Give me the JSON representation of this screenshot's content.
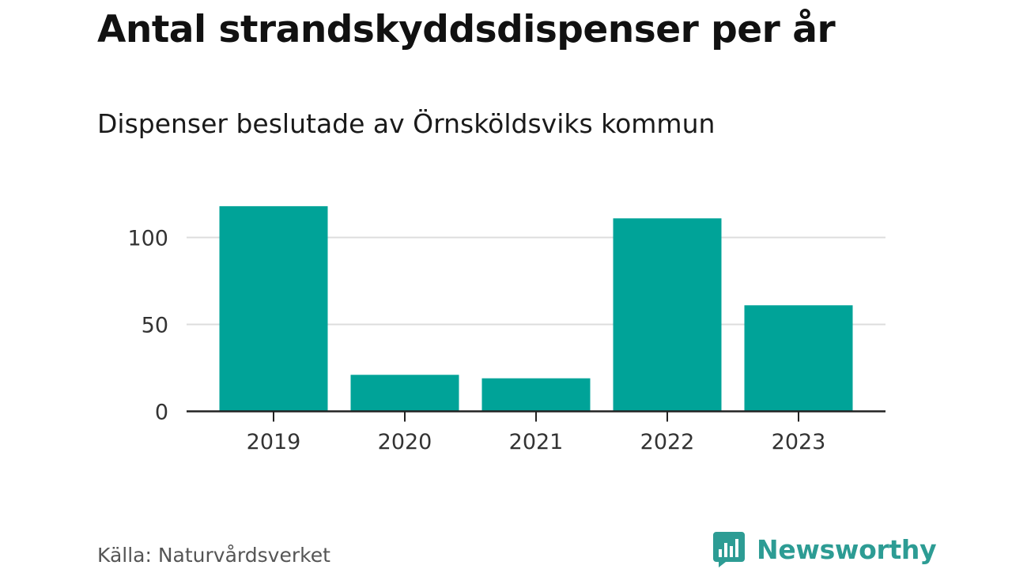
{
  "colors": {
    "bar": "#00a398",
    "grid": "#dddddd",
    "axis": "#222222",
    "brand": "#2d9c94"
  },
  "source_text": "Källa: Naturvårdsverket",
  "brand": {
    "name": "Newsworthy",
    "icon": "newsworthy-logo-icon"
  },
  "chart_data": {
    "type": "bar",
    "title": "Antal strandskyddsdispenser per år",
    "subtitle": "Dispenser beslutade av Örnsköldsviks kommun",
    "categories": [
      "2019",
      "2020",
      "2021",
      "2022",
      "2023"
    ],
    "values": [
      118,
      21,
      19,
      111,
      61
    ],
    "xlabel": "",
    "ylabel": "",
    "ylim": [
      0,
      120
    ],
    "yticks": [
      0,
      50,
      100
    ],
    "grid": true,
    "legend": "none"
  }
}
